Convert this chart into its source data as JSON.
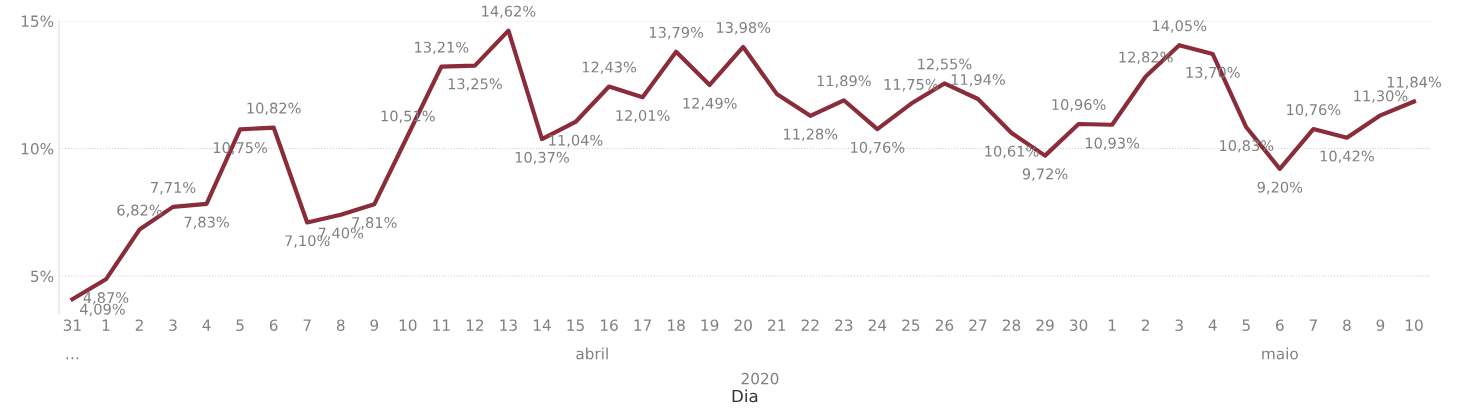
{
  "chart_data": {
    "type": "line",
    "xlabel": "Dia",
    "categories": [
      "31",
      "1",
      "2",
      "3",
      "4",
      "5",
      "6",
      "7",
      "8",
      "9",
      "10",
      "11",
      "12",
      "13",
      "14",
      "15",
      "16",
      "17",
      "18",
      "19",
      "20",
      "21",
      "22",
      "23",
      "24",
      "25",
      "26",
      "27",
      "28",
      "29",
      "30",
      "1",
      "2",
      "3",
      "4",
      "5",
      "6",
      "7",
      "8",
      "9",
      "10"
    ],
    "series": [
      {
        "color": "#8b2c3a",
        "values": [
          4.09,
          4.87,
          6.82,
          7.71,
          7.83,
          10.75,
          10.82,
          7.1,
          7.4,
          7.81,
          10.51,
          13.21,
          13.25,
          14.62,
          10.37,
          11.04,
          12.43,
          12.01,
          13.79,
          12.49,
          13.98,
          12.14,
          11.28,
          11.89,
          10.76,
          11.75,
          12.55,
          11.94,
          10.61,
          9.72,
          10.96,
          10.93,
          12.82,
          14.05,
          13.7,
          10.83,
          9.2,
          10.76,
          10.42,
          11.3,
          11.84
        ],
        "value_labels": [
          "4,09%",
          "4,87%",
          "6,82%",
          "7,71%",
          "7,83%",
          "10,75%",
          "10,82%",
          "7,10%",
          "7,40%",
          "7,81%",
          "10,51%",
          "13,21%",
          "13,25%",
          "14,62%",
          "10,37%",
          "11,04%",
          "12,43%",
          "12,01%",
          "13,79%",
          "12,49%",
          "13,98%",
          null,
          "11,28%",
          "11,89%",
          "10,76%",
          "11,75%",
          "12,55%",
          "11,94%",
          "10,61%",
          "9,72%",
          "10,96%",
          "10,93%",
          "12,82%",
          "14,05%",
          "13,70%",
          "10,83%",
          "9,20%",
          "10,76%",
          "10,42%",
          "11,30%",
          "11,84%"
        ]
      }
    ],
    "ylim": [
      3.5,
      15
    ],
    "yticks": [
      {
        "value": 5,
        "label": "5%"
      },
      {
        "value": 10,
        "label": "10%"
      },
      {
        "value": 15,
        "label": "15%"
      }
    ],
    "grid": "y",
    "legend": false,
    "marker": "none",
    "line_style": "solid",
    "annotations": [
      "…",
      "abril",
      "maio",
      "2020"
    ]
  }
}
